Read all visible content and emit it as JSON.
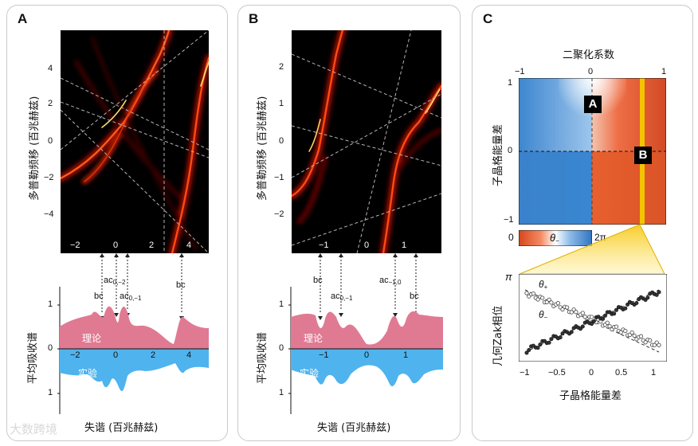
{
  "panels": {
    "A": {
      "label": "A",
      "ylabel": "多普勒频移 (百兆赫兹)",
      "yticks": [
        "4",
        "2",
        "0",
        "−2",
        "−4"
      ],
      "xticks": [
        "−2",
        "0",
        "2",
        "4"
      ],
      "annotations": {
        "ac_top": "ac",
        "ac_top_sub": "0,−2",
        "ac_bot": "ac",
        "ac_bot_sub": "0,−1",
        "bc_left": "bc",
        "bc_right": "bc"
      },
      "spectrum": {
        "ylabel": "平均吸收谱",
        "yticks": [
          "1",
          "0",
          "1"
        ],
        "theory": "理论",
        "experiment": "实验"
      },
      "xlabel": "失谐 (百兆赫兹)"
    },
    "B": {
      "label": "B",
      "ylabel": "多普勒频移 (百兆赫兹)",
      "yticks": [
        "2",
        "1",
        "0",
        "−1",
        "−2"
      ],
      "xticks": [
        "−1",
        "0",
        "1"
      ],
      "annotations": {
        "bc_left": "bc",
        "ac_left": "ac",
        "ac_left_sub": "0,−1",
        "ac_right": "ac",
        "ac_right_sub": "−1,0",
        "bc_right": "bc"
      },
      "spectrum": {
        "ylabel": "平均吸收谱",
        "yticks": [
          "1",
          "0",
          "1"
        ],
        "theory": "理论",
        "experiment": "实验"
      },
      "xlabel": "失谐 (百兆赫兹)"
    },
    "C": {
      "label": "C",
      "top_title": "二聚化系数",
      "top_ticks": [
        "−1",
        "0",
        "1"
      ],
      "ylabel": "子晶格能量差",
      "yticks": [
        "1",
        "0",
        "−1"
      ],
      "chip_a": "A",
      "chip_b": "B",
      "colorbar": {
        "min": "0",
        "max": "2π",
        "symbol": "θ",
        "symbol_sub": "−"
      },
      "zak": {
        "ylabel": "几何Zak相位",
        "ytick": "π",
        "xticks": [
          "−1",
          "−0.5",
          "0",
          "0.5",
          "1"
        ],
        "xlabel": "子晶格能量差",
        "theta_plus": "θ",
        "theta_plus_sub": "+",
        "theta_minus": "θ",
        "theta_minus_sub": "−"
      }
    }
  },
  "watermark": "大数跨境",
  "colors": {
    "theory": "#e07a93",
    "experiment": "#4fb3ee",
    "highlight": "#f5c400"
  }
}
